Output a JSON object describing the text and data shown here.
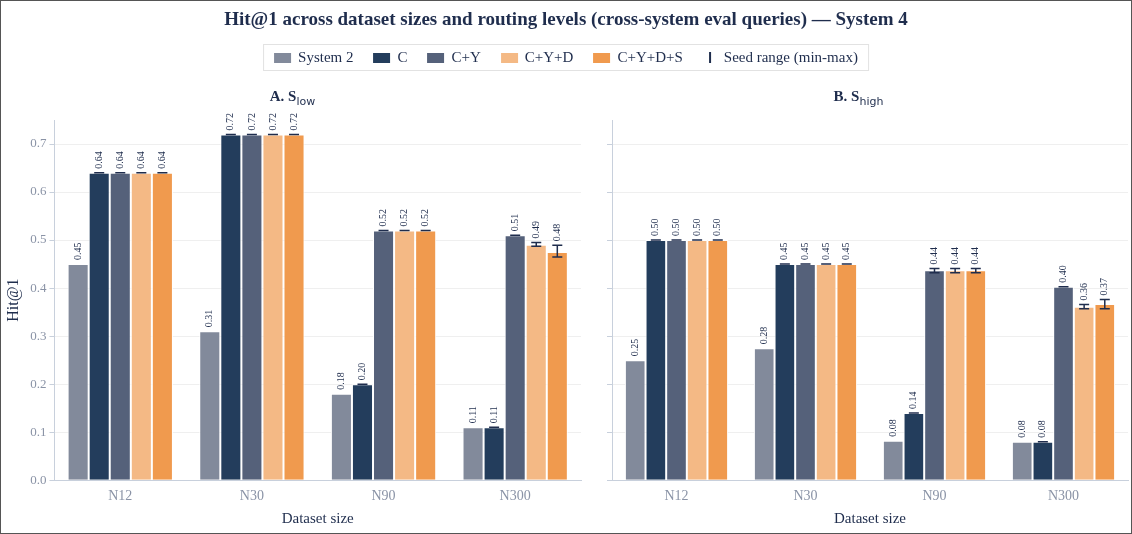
{
  "chart_data": [
    {
      "type": "bar",
      "title": "Hit@1 across dataset sizes and routing levels (cross-system eval queries) — System 4",
      "subtitle": "A. S$_{low}$",
      "xlabel": "Dataset size",
      "ylabel": "Hit@1",
      "categories": [
        "N12",
        "N30",
        "N90",
        "N300"
      ],
      "ylim": [
        0,
        0.75
      ],
      "yticks": [
        {
          "value": 0,
          "label": "0.0"
        },
        0.1,
        0.2,
        0.3,
        0.4,
        0.5,
        0.6,
        0.7
      ],
      "grid": "y",
      "legend": "top",
      "annotations": [
        "Seed range (min-max)"
      ],
      "series": [
        {
          "name": "System 2",
          "color": "#828a9b",
          "values": [
            0.45,
            0.31,
            0.18,
            0.11
          ],
          "value_labels": [
            "0.45",
            "0.31",
            "0.18",
            "0.11"
          ],
          "errors": [
            null,
            null,
            null,
            null
          ]
        },
        {
          "name": "C",
          "color": "#233d5c",
          "values": [
            0.64,
            0.72,
            0.2,
            0.11
          ],
          "value_labels": [
            "0.64",
            "0.72",
            "0.20",
            "0.11"
          ],
          "errors": [
            0,
            0,
            0,
            0
          ]
        },
        {
          "name": "C+Y",
          "color": "#55617a",
          "values": [
            0.64,
            0.72,
            0.52,
            0.51
          ],
          "value_labels": [
            "0.64",
            "0.72",
            "0.52",
            "0.51"
          ],
          "errors": [
            0,
            0,
            0,
            0
          ]
        },
        {
          "name": "C+Y+D",
          "color": "#f4b985",
          "values": [
            0.64,
            0.72,
            0.52,
            0.49
          ],
          "value_labels": [
            "0.64",
            "0.72",
            "0.52",
            "0.49"
          ],
          "errors": [
            0,
            0,
            0,
            [
              0.487,
              0.495
            ]
          ]
        },
        {
          "name": "C+Y+D+S",
          "color": "#f09a4e",
          "values": [
            0.64,
            0.72,
            0.52,
            0.475
          ],
          "value_labels": [
            "0.64",
            "0.72",
            "0.52",
            "0.48"
          ],
          "errors": [
            0,
            0,
            0,
            [
              0.465,
              0.489
            ]
          ]
        }
      ]
    },
    {
      "type": "bar",
      "subtitle": "B. S$_{high}$",
      "xlabel": "Dataset size",
      "categories": [
        "N12",
        "N30",
        "N90",
        "N300"
      ],
      "ylim": [
        0,
        0.75
      ],
      "yticks": [
        0,
        0.1,
        0.2,
        0.3,
        0.4,
        0.5,
        0.6,
        0.7
      ],
      "grid": "y",
      "tick_labels": "x",
      "series": [
        {
          "color": "#828a9b",
          "values": [
            0.25,
            0.275,
            0.082,
            0.08
          ],
          "value_labels": [
            "0.25",
            "0.28",
            "0.08",
            "0.08"
          ],
          "errors": [
            null,
            null,
            null,
            null
          ]
        },
        {
          "color": "#233d5c",
          "values": [
            0.5,
            0.45,
            0.14,
            0.08
          ],
          "value_labels": [
            "0.50",
            "0.45",
            "0.14",
            "0.08"
          ],
          "errors": [
            0,
            0,
            0,
            0
          ]
        },
        {
          "color": "#55617a",
          "values": [
            0.5,
            0.45,
            0.437,
            0.403
          ],
          "value_labels": [
            "0.50",
            "0.45",
            "0.44",
            "0.40"
          ],
          "errors": [
            0,
            0,
            [
              0.432,
              0.441
            ],
            0
          ]
        },
        {
          "color": "#f4b985",
          "values": [
            0.5,
            0.45,
            0.437,
            0.361
          ],
          "value_labels": [
            "0.50",
            "0.45",
            "0.44",
            "0.36"
          ],
          "errors": [
            0,
            0,
            [
              0.432,
              0.441
            ],
            [
              0.357,
              0.366
            ]
          ]
        },
        {
          "color": "#f09a4e",
          "values": [
            0.5,
            0.45,
            0.437,
            0.367
          ],
          "value_labels": [
            "0.50",
            "0.45",
            "0.44",
            "0.37"
          ],
          "errors": [
            0,
            0,
            [
              0.432,
              0.441
            ],
            [
              0.357,
              0.376
            ]
          ]
        }
      ]
    }
  ]
}
